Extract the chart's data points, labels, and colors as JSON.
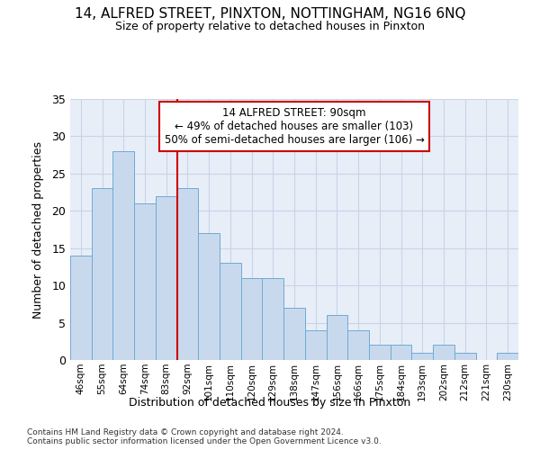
{
  "title1": "14, ALFRED STREET, PINXTON, NOTTINGHAM, NG16 6NQ",
  "title2": "Size of property relative to detached houses in Pinxton",
  "xlabel": "Distribution of detached houses by size in Pinxton",
  "ylabel": "Number of detached properties",
  "categories": [
    "46sqm",
    "55sqm",
    "64sqm",
    "74sqm",
    "83sqm",
    "92sqm",
    "101sqm",
    "110sqm",
    "120sqm",
    "129sqm",
    "138sqm",
    "147sqm",
    "156sqm",
    "166sqm",
    "175sqm",
    "184sqm",
    "193sqm",
    "202sqm",
    "212sqm",
    "221sqm",
    "230sqm"
  ],
  "values": [
    14,
    23,
    28,
    21,
    22,
    23,
    17,
    13,
    11,
    11,
    7,
    4,
    6,
    4,
    2,
    2,
    1,
    2,
    1,
    0,
    1
  ],
  "bar_color": "#c9d9ed",
  "bar_edge_color": "#6eaad4",
  "vline_index": 5,
  "vline_color": "#cc0000",
  "annotation_line1": "14 ALFRED STREET: 90sqm",
  "annotation_line2": "← 49% of detached houses are smaller (103)",
  "annotation_line3": "50% of semi-detached houses are larger (106) →",
  "annotation_box_color": "#ffffff",
  "annotation_box_edge": "#cc0000",
  "ylim": [
    0,
    35
  ],
  "yticks": [
    0,
    5,
    10,
    15,
    20,
    25,
    30,
    35
  ],
  "grid_color": "#c8d4e8",
  "footnote": "Contains HM Land Registry data © Crown copyright and database right 2024.\nContains public sector information licensed under the Open Government Licence v3.0.",
  "bg_color": "#e8eef8",
  "title1_fontsize": 11,
  "title2_fontsize": 9
}
